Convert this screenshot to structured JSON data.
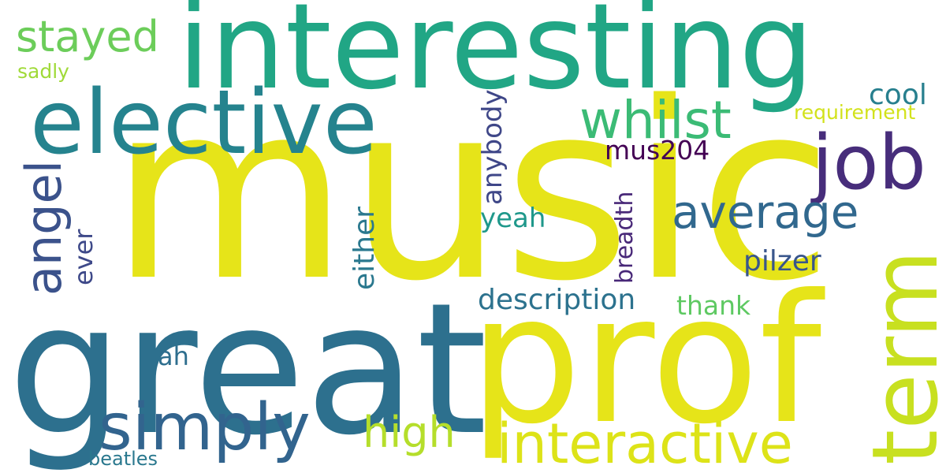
{
  "word_cloud": {
    "background": "#ffffff",
    "words": {
      "music": {
        "text": "music",
        "color": "#e6e419"
      },
      "great": {
        "text": "great",
        "color": "#2d708e"
      },
      "prof": {
        "text": "prof",
        "color": "#e6e419"
      },
      "interesting": {
        "text": "interesting",
        "color": "#21a685"
      },
      "elective": {
        "text": "elective",
        "color": "#25838e"
      },
      "term": {
        "text": "term",
        "color": "#c8e020"
      },
      "simply": {
        "text": "simply",
        "color": "#32648e"
      },
      "interactive": {
        "text": "interactive",
        "color": "#dde318"
      },
      "job": {
        "text": "job",
        "color": "#472d7b"
      },
      "whilst": {
        "text": "whilst",
        "color": "#3bbb75"
      },
      "stayed": {
        "text": "stayed",
        "color": "#6ccd5a"
      },
      "average": {
        "text": "average",
        "color": "#31688e"
      },
      "angel": {
        "text": "angel",
        "color": "#3b528b"
      },
      "high": {
        "text": "high",
        "color": "#b5de2b"
      },
      "pilzer": {
        "text": "pilzer",
        "color": "#39568c"
      },
      "description": {
        "text": "description",
        "color": "#2c728e"
      },
      "cool": {
        "text": "cool",
        "color": "#277f8e"
      },
      "either": {
        "text": "either",
        "color": "#2a788e"
      },
      "mus204": {
        "text": "mus204",
        "color": "#440154"
      },
      "thank": {
        "text": "thank",
        "color": "#5ec962"
      },
      "anybody": {
        "text": "anybody",
        "color": "#3f4788"
      },
      "yeah": {
        "text": "yeah",
        "color": "#1f988b"
      },
      "breadth": {
        "text": "breadth",
        "color": "#482878"
      },
      "ever": {
        "text": "ever",
        "color": "#3e4989"
      },
      "ah": {
        "text": "ah",
        "color": "#2e6e8e"
      },
      "requirement": {
        "text": "requirement",
        "color": "#d2e21b"
      },
      "sadly": {
        "text": "sadly",
        "color": "#a0da39"
      },
      "beatles": {
        "text": "beatles",
        "color": "#2a788e"
      }
    }
  }
}
